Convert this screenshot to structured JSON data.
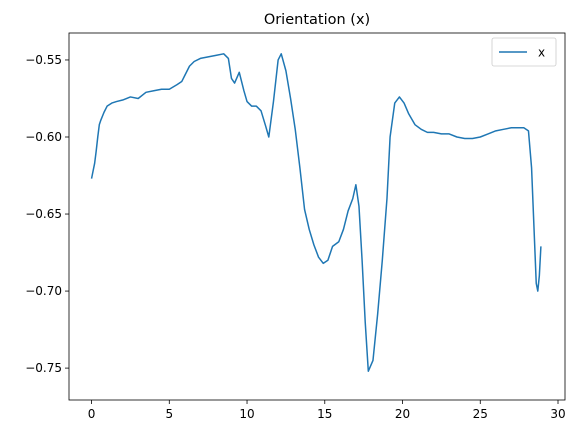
{
  "chart_data": {
    "type": "line",
    "title": "Orientation (x)",
    "xlabel": "",
    "ylabel": "",
    "xlim": [
      -1.45,
      30.45
    ],
    "ylim": [
      -0.7707,
      -0.5325
    ],
    "xticks": [
      0,
      5,
      10,
      15,
      20,
      25,
      30
    ],
    "yticks": [
      -0.75,
      -0.7,
      -0.65,
      -0.6,
      -0.55
    ],
    "xtick_labels": [
      "0",
      "5",
      "10",
      "15",
      "20",
      "25",
      "30"
    ],
    "ytick_labels": [
      "−0.75",
      "−0.70",
      "−0.65",
      "−0.60",
      "−0.55"
    ],
    "grid": false,
    "legend": {
      "position": "top-right",
      "entries": [
        "x"
      ]
    },
    "series": [
      {
        "name": "x",
        "color": "#1f77b4",
        "x": [
          0.0,
          0.1,
          0.2,
          0.3,
          0.4,
          0.5,
          0.6,
          0.8,
          1.0,
          1.3,
          1.6,
          2.0,
          2.5,
          3.0,
          3.5,
          4.0,
          4.5,
          5.0,
          5.5,
          5.8,
          6.0,
          6.3,
          6.6,
          7.0,
          7.5,
          8.0,
          8.5,
          8.8,
          9.0,
          9.2,
          9.5,
          9.8,
          10.0,
          10.3,
          10.6,
          10.9,
          11.2,
          11.4,
          11.7,
          12.0,
          12.2,
          12.5,
          12.8,
          13.1,
          13.4,
          13.7,
          14.0,
          14.3,
          14.6,
          14.9,
          15.2,
          15.5,
          15.9,
          16.2,
          16.5,
          16.8,
          17.0,
          17.2,
          17.4,
          17.6,
          17.8,
          18.1,
          18.4,
          18.7,
          19.0,
          19.2,
          19.5,
          19.8,
          20.1,
          20.4,
          20.8,
          21.2,
          21.6,
          22.0,
          22.5,
          23.0,
          23.5,
          24.0,
          24.5,
          25.0,
          25.5,
          26.0,
          26.5,
          27.0,
          27.5,
          27.8,
          28.1,
          28.3,
          28.5,
          28.6,
          28.7,
          28.8,
          28.9
        ],
        "y": [
          -0.627,
          -0.622,
          -0.617,
          -0.609,
          -0.6,
          -0.592,
          -0.589,
          -0.584,
          -0.58,
          -0.578,
          -0.577,
          -0.576,
          -0.574,
          -0.575,
          -0.571,
          -0.57,
          -0.569,
          -0.569,
          -0.566,
          -0.564,
          -0.56,
          -0.554,
          -0.551,
          -0.549,
          -0.548,
          -0.547,
          -0.546,
          -0.549,
          -0.562,
          -0.565,
          -0.558,
          -0.57,
          -0.577,
          -0.58,
          -0.58,
          -0.583,
          -0.593,
          -0.6,
          -0.577,
          -0.55,
          -0.546,
          -0.557,
          -0.575,
          -0.595,
          -0.62,
          -0.647,
          -0.66,
          -0.67,
          -0.678,
          -0.682,
          -0.68,
          -0.671,
          -0.668,
          -0.66,
          -0.648,
          -0.64,
          -0.631,
          -0.645,
          -0.68,
          -0.72,
          -0.752,
          -0.745,
          -0.715,
          -0.68,
          -0.64,
          -0.6,
          -0.578,
          -0.574,
          -0.578,
          -0.585,
          -0.592,
          -0.595,
          -0.597,
          -0.597,
          -0.598,
          -0.598,
          -0.6,
          -0.601,
          -0.601,
          -0.6,
          -0.598,
          -0.596,
          -0.595,
          -0.594,
          -0.594,
          -0.594,
          -0.596,
          -0.62,
          -0.67,
          -0.695,
          -0.7,
          -0.69,
          -0.671
        ]
      }
    ]
  }
}
